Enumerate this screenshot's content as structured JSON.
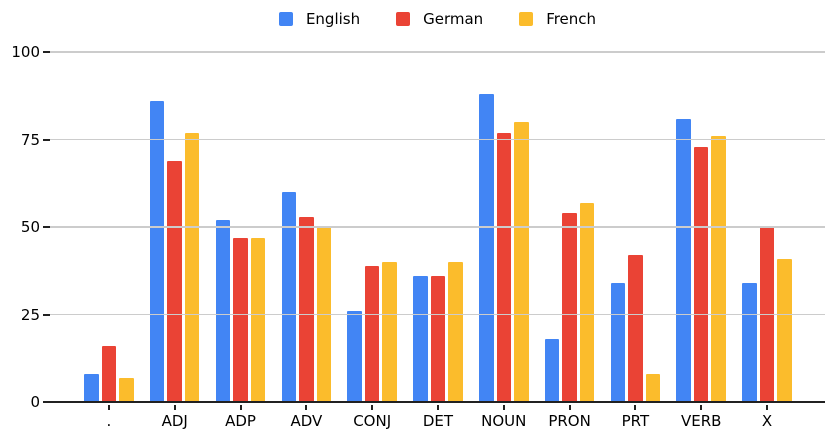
{
  "chart_data": {
    "type": "bar",
    "title": "",
    "xlabel": "",
    "ylabel": "",
    "categories": [
      ".",
      "ADJ",
      "ADP",
      "ADV",
      "CONJ",
      "DET",
      "NOUN",
      "PRON",
      "PRT",
      "VERB",
      "X"
    ],
    "series": [
      {
        "name": "English",
        "color": "#4285F4",
        "values": [
          8,
          86,
          52,
          60,
          26,
          36,
          88,
          18,
          34,
          81,
          34
        ]
      },
      {
        "name": "German",
        "color": "#EA4335",
        "values": [
          16,
          69,
          47,
          53,
          39,
          36,
          77,
          54,
          42,
          73,
          50
        ]
      },
      {
        "name": "French",
        "color": "#FBBC2C",
        "values": [
          7,
          77,
          47,
          50,
          40,
          40,
          80,
          57,
          8,
          76,
          41
        ]
      }
    ],
    "ylim": [
      0,
      100
    ],
    "yticks": [
      0,
      25,
      50,
      75,
      100
    ],
    "grid": true,
    "legend_position": "top-center"
  },
  "style": {
    "background": "#ffffff",
    "gridline_color": "#cccccc",
    "axis_color": "#212121",
    "text_color": "#000000"
  }
}
